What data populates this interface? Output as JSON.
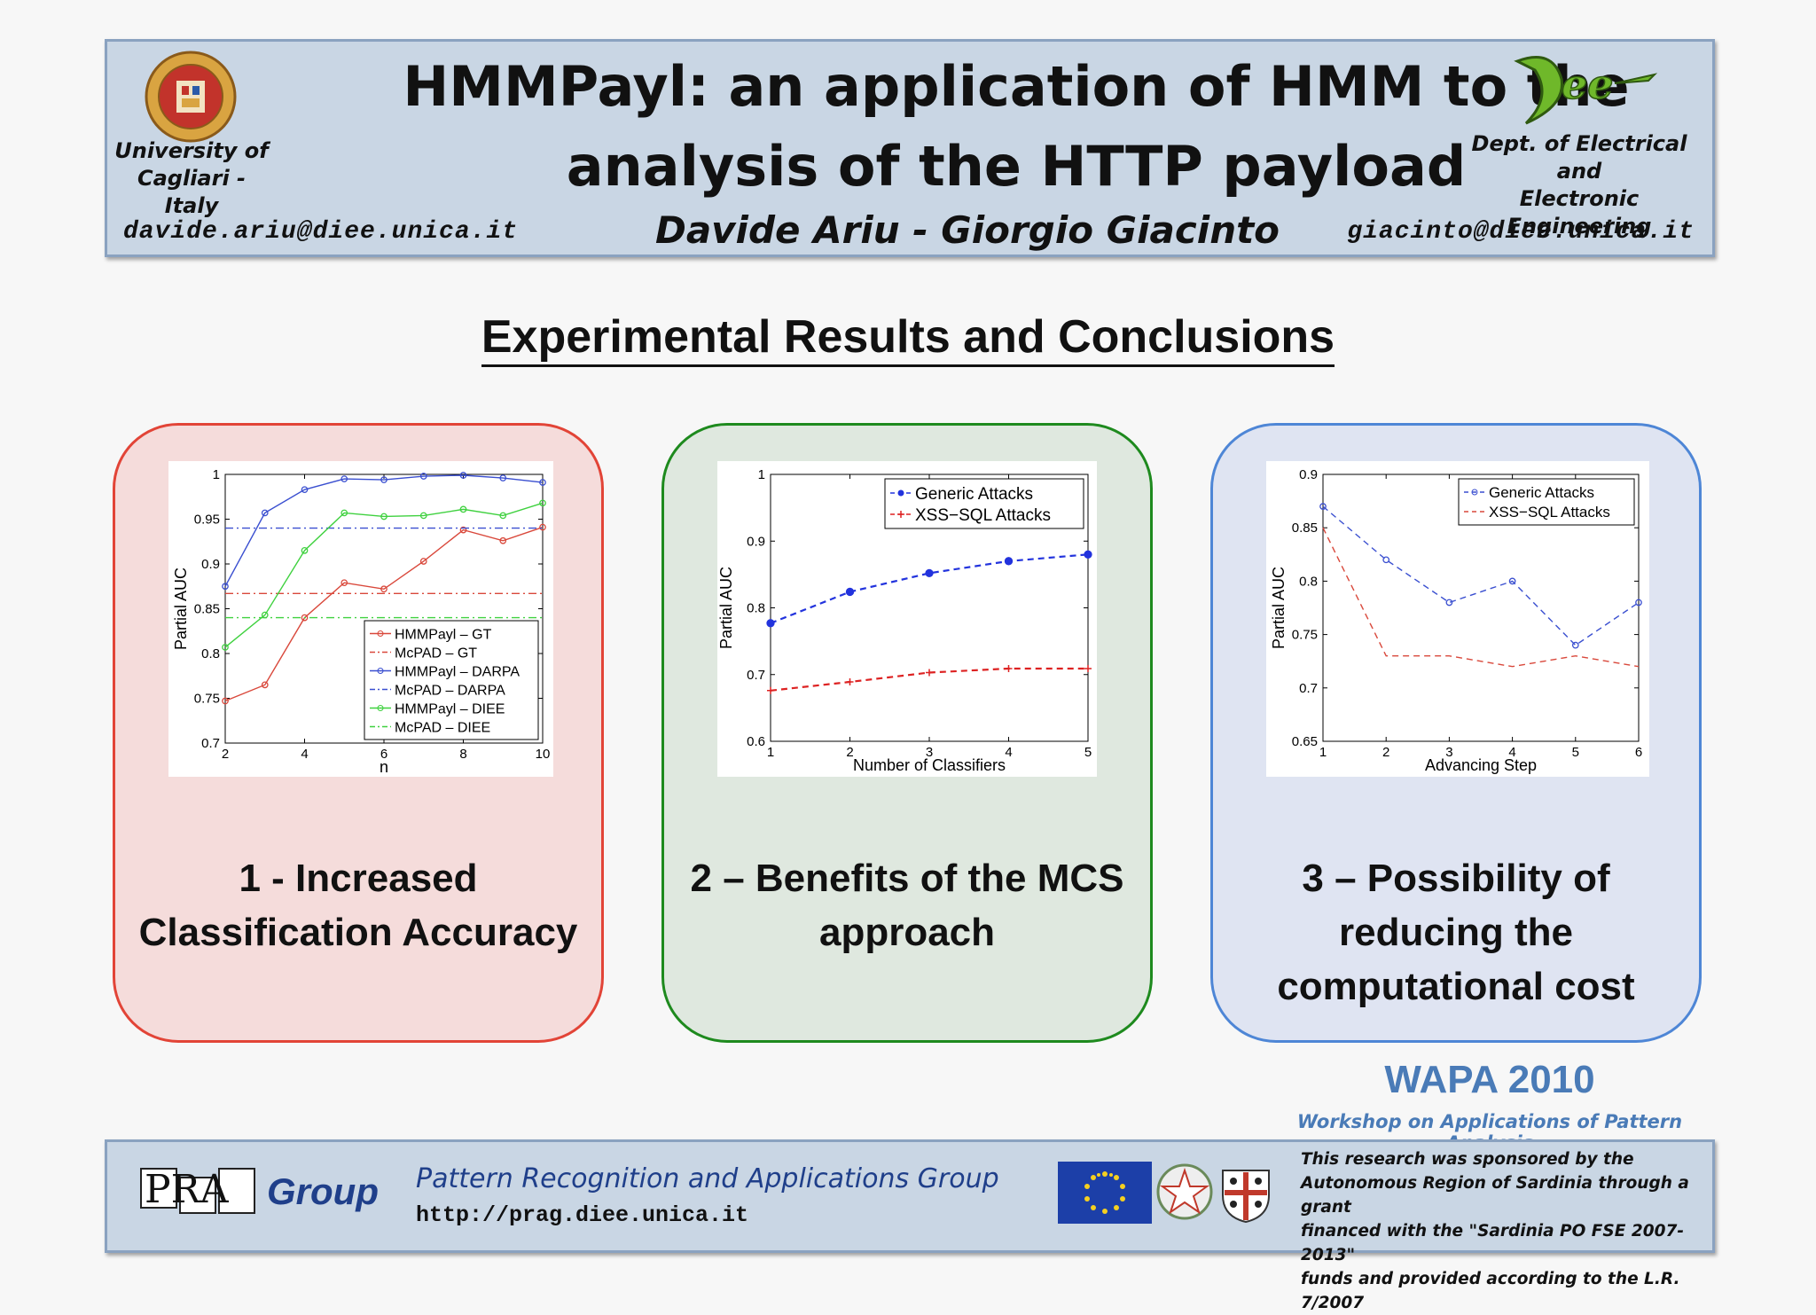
{
  "header": {
    "title_line1": "HMMPayl: an application of HMM to the",
    "title_line2": "analysis of the HTTP payload",
    "authors": "Davide Ariu - Giorgio Giacinto",
    "left_institution_line1": "University of",
    "left_institution_line2": "Cagliari - Italy",
    "left_email": "davide.ariu@diee.unica.it",
    "right_institution_line1": "Dept. of Electrical and",
    "right_institution_line2": "Electronic Engineering",
    "right_email": "giacinto@diee.unica.it",
    "logo_seal_text": "STUDIORUM CALARITANA",
    "logo_diee_text": "Diee"
  },
  "section_title": "Experimental Results and Conclusions",
  "panels": [
    {
      "caption_line1": "1 - Increased",
      "caption_line2": "Classification Accuracy",
      "caption_line3": "",
      "color": "#e24437"
    },
    {
      "caption_line1": "2 – Benefits of the MCS",
      "caption_line2": "approach",
      "caption_line3": "",
      "color": "#1e8a1e"
    },
    {
      "caption_line1": "3 – Possibility of",
      "caption_line2": "reducing the",
      "caption_line3": "computational cost",
      "color": "#4e86d6"
    }
  ],
  "wapa": {
    "title": "WAPA 2010",
    "subtitle": "Workshop on Applications of Pattern Analysis"
  },
  "footer": {
    "group_logo": "PRA",
    "group_word": "Group",
    "group_name": "Pattern Recognition  and Applications Group",
    "url": "http://prag.diee.unica.it",
    "sponsor_line1": "This research was sponsored by the",
    "sponsor_line2": "Autonomous Region of Sardinia through a grant",
    "sponsor_line3": "financed with the \"Sardinia PO FSE 2007-2013\"",
    "sponsor_line4": "funds and provided according to the L.R. 7/2007"
  },
  "chart_data": [
    {
      "type": "line",
      "xlabel": "n",
      "ylabel": "Partial AUC",
      "xlim": [
        2,
        10
      ],
      "ylim": [
        0.7,
        1
      ],
      "xticks": [
        2,
        4,
        6,
        8,
        10
      ],
      "yticks": [
        0.7,
        0.75,
        0.8,
        0.85,
        0.9,
        0.95,
        1
      ],
      "grid": false,
      "legend_position": "bottom-right",
      "x": [
        2,
        3,
        4,
        5,
        6,
        7,
        8,
        9,
        10
      ],
      "series": [
        {
          "name": "HMMPayl – GT",
          "color": "#d9483b",
          "style": "solid-marker",
          "values": [
            0.747,
            0.765,
            0.84,
            0.879,
            0.872,
            0.903,
            0.938,
            0.926,
            0.941
          ]
        },
        {
          "name": "McPAD – GT",
          "color": "#d9483b",
          "style": "dashdot",
          "values": [
            0.867,
            0.867,
            0.867,
            0.867,
            0.867,
            0.867,
            0.867,
            0.867,
            0.867
          ]
        },
        {
          "name": "HMMPayl – DARPA",
          "color": "#3a4fd0",
          "style": "solid-marker",
          "values": [
            0.875,
            0.957,
            0.983,
            0.995,
            0.994,
            0.998,
            0.999,
            0.996,
            0.991
          ]
        },
        {
          "name": "McPAD – DARPA",
          "color": "#3a4fd0",
          "style": "dashdot",
          "values": [
            0.94,
            0.94,
            0.94,
            0.94,
            0.94,
            0.94,
            0.94,
            0.94,
            0.94
          ]
        },
        {
          "name": "HMMPayl – DIEE",
          "color": "#3fd13f",
          "style": "solid-marker",
          "values": [
            0.807,
            0.843,
            0.915,
            0.957,
            0.953,
            0.954,
            0.961,
            0.954,
            0.968
          ]
        },
        {
          "name": "McPAD – DIEE",
          "color": "#3fd13f",
          "style": "dashdot",
          "values": [
            0.84,
            0.84,
            0.84,
            0.84,
            0.84,
            0.84,
            0.84,
            0.84,
            0.84
          ]
        }
      ]
    },
    {
      "type": "line",
      "xlabel": "Number of Classifiers",
      "ylabel": "Partial AUC",
      "xlim": [
        1,
        5
      ],
      "ylim": [
        0.6,
        1
      ],
      "xticks": [
        1,
        2,
        3,
        4,
        5
      ],
      "yticks": [
        0.6,
        0.7,
        0.8,
        0.9,
        1
      ],
      "grid": false,
      "legend_position": "top-right",
      "x": [
        1,
        2,
        3,
        4,
        5
      ],
      "series": [
        {
          "name": "Generic Attacks",
          "color": "#2233dd",
          "style": "dashed-marker",
          "values": [
            0.777,
            0.824,
            0.852,
            0.87,
            0.88
          ]
        },
        {
          "name": "XSS−SQL Attacks",
          "color": "#dd2222",
          "style": "dashed-plus",
          "values": [
            0.676,
            0.689,
            0.703,
            0.709,
            0.709
          ]
        }
      ]
    },
    {
      "type": "line",
      "xlabel": "Advancing Step",
      "ylabel": "Partial AUC",
      "xlim": [
        1,
        6
      ],
      "ylim": [
        0.65,
        0.9
      ],
      "xticks": [
        1,
        2,
        3,
        4,
        5,
        6
      ],
      "yticks": [
        0.65,
        0.7,
        0.75,
        0.8,
        0.85,
        0.9
      ],
      "grid": false,
      "legend_position": "top-right",
      "x": [
        1,
        2,
        3,
        4,
        5,
        6
      ],
      "series": [
        {
          "name": "Generic Attacks",
          "color": "#3a4fd0",
          "style": "dashed-marker",
          "values": [
            0.87,
            0.82,
            0.78,
            0.8,
            0.74,
            0.78
          ]
        },
        {
          "name": "XSS−SQL Attacks",
          "color": "#d9483b",
          "style": "dashed",
          "values": [
            0.85,
            0.73,
            0.73,
            0.72,
            0.73,
            0.72
          ]
        }
      ]
    }
  ]
}
